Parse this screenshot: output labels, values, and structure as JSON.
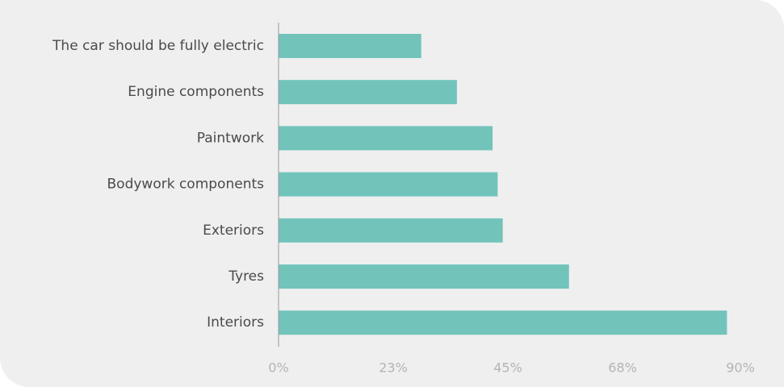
{
  "chart_data": {
    "type": "bar",
    "orientation": "horizontal",
    "categories": [
      "The car should be fully electric",
      "Engine components",
      "Paintwork",
      "Bodywork components",
      "Exteriors",
      "Tyres",
      "Interiors"
    ],
    "values": [
      28,
      35,
      42,
      43,
      44,
      57,
      88
    ],
    "xlim": [
      0,
      90
    ],
    "x_ticks": [
      "0%",
      "23%",
      "45%",
      "68%",
      "90%"
    ],
    "bar_color": "#72c4bb",
    "grid": false,
    "title": "",
    "xlabel": "",
    "ylabel": ""
  }
}
